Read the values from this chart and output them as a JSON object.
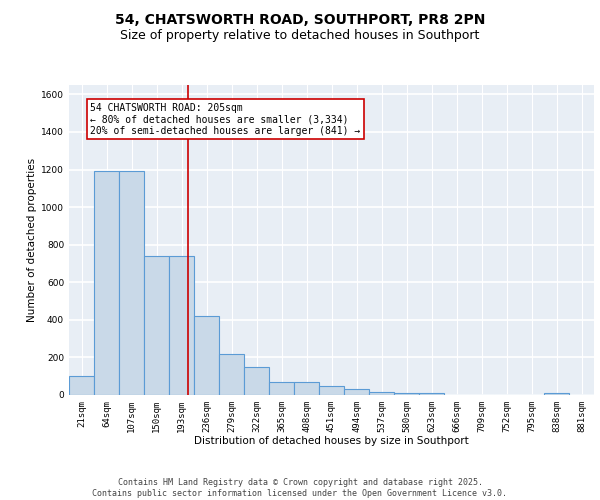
{
  "title": "54, CHATSWORTH ROAD, SOUTHPORT, PR8 2PN",
  "subtitle": "Size of property relative to detached houses in Southport",
  "xlabel": "Distribution of detached houses by size in Southport",
  "ylabel": "Number of detached properties",
  "categories": [
    "21sqm",
    "64sqm",
    "107sqm",
    "150sqm",
    "193sqm",
    "236sqm",
    "279sqm",
    "322sqm",
    "365sqm",
    "408sqm",
    "451sqm",
    "494sqm",
    "537sqm",
    "580sqm",
    "623sqm",
    "666sqm",
    "709sqm",
    "752sqm",
    "795sqm",
    "838sqm",
    "881sqm"
  ],
  "values": [
    100,
    1190,
    1190,
    740,
    740,
    420,
    220,
    150,
    70,
    70,
    50,
    30,
    15,
    10,
    10,
    0,
    0,
    0,
    0,
    10,
    0
  ],
  "bar_color": "#c9d9e8",
  "bar_edge_color": "#5b9bd5",
  "bar_edge_width": 0.8,
  "background_color": "#e8eef5",
  "grid_color": "#d0d8e4",
  "annotation_text": "54 CHATSWORTH ROAD: 205sqm\n← 80% of detached houses are smaller (3,334)\n20% of semi-detached houses are larger (841) →",
  "ylim": [
    0,
    1650
  ],
  "yticks": [
    0,
    200,
    400,
    600,
    800,
    1000,
    1200,
    1400,
    1600
  ],
  "footer_line1": "Contains HM Land Registry data © Crown copyright and database right 2025.",
  "footer_line2": "Contains public sector information licensed under the Open Government Licence v3.0.",
  "title_fontsize": 10,
  "subtitle_fontsize": 9,
  "axis_label_fontsize": 7.5,
  "tick_fontsize": 6.5,
  "annotation_fontsize": 7,
  "footer_fontsize": 6
}
